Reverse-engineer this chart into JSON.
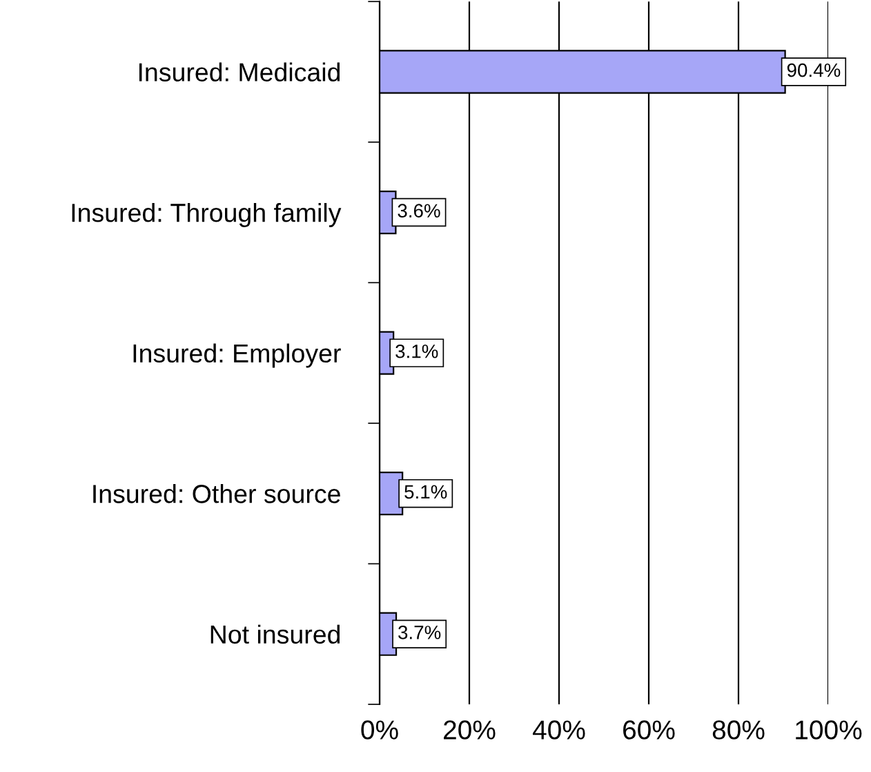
{
  "chart_data": {
    "type": "bar",
    "orientation": "horizontal",
    "categories": [
      "Insured: Medicaid",
      "Insured: Through family",
      "Insured: Employer",
      "Insured: Other source",
      "Not insured"
    ],
    "values": [
      90.4,
      3.6,
      3.1,
      5.1,
      3.7
    ],
    "value_labels": [
      "90.4%",
      "3.6%",
      "3.1%",
      "5.1%",
      "3.7%"
    ],
    "color": "#a6a6f7",
    "xlim": [
      0,
      100
    ],
    "xticks": [
      {
        "value": 0,
        "label": "0%"
      },
      {
        "value": 20,
        "label": "20%"
      },
      {
        "value": 40,
        "label": "40%"
      },
      {
        "value": 60,
        "label": "60%"
      },
      {
        "value": 80,
        "label": "80%"
      },
      {
        "value": 100,
        "label": "100%"
      }
    ],
    "grid": "x",
    "legend": false
  }
}
